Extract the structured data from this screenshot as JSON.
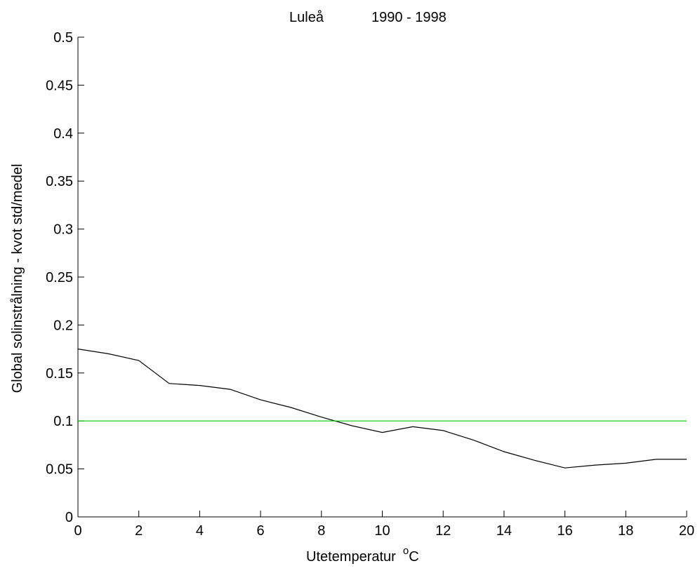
{
  "chart_data": {
    "type": "line",
    "title": "Luleå",
    "subtitle": "1990 - 1998",
    "xlabel": "Utetemperatur",
    "xlabel_unit_superscript": "o",
    "xlabel_unit": "C",
    "ylabel": "Global solinstrålning  -  kvot std/medel",
    "xlim": [
      0,
      20
    ],
    "ylim": [
      0,
      0.5
    ],
    "xticks": [
      "0",
      "2",
      "4",
      "6",
      "8",
      "10",
      "12",
      "14",
      "16",
      "18",
      "20"
    ],
    "yticks": [
      "0",
      "0.05",
      "0.1",
      "0.15",
      "0.2",
      "0.25",
      "0.3",
      "0.35",
      "0.4",
      "0.45",
      "0.5"
    ],
    "grid": false,
    "series": [
      {
        "color": "#000000",
        "x": [
          0,
          1,
          2,
          3,
          4,
          5,
          6,
          7,
          8,
          9,
          10,
          11,
          12,
          13,
          14,
          15,
          16,
          17,
          18,
          19,
          20
        ],
        "y": [
          0.175,
          0.17,
          0.163,
          0.139,
          0.137,
          0.133,
          0.122,
          0.114,
          0.104,
          0.095,
          0.088,
          0.094,
          0.09,
          0.08,
          0.068,
          0.059,
          0.051,
          0.054,
          0.056,
          0.06,
          0.06
        ]
      },
      {
        "color": "#00cc00",
        "x": [
          0,
          20
        ],
        "y": [
          0.1,
          0.1
        ]
      }
    ]
  }
}
